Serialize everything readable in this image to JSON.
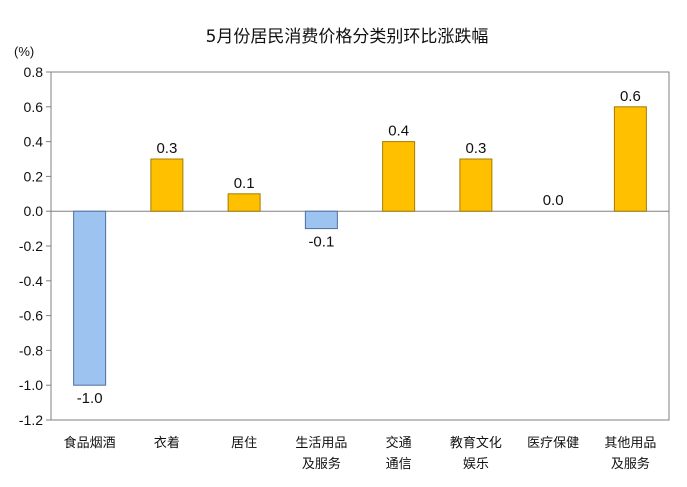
{
  "chart_data": {
    "type": "bar",
    "title": "5月份居民消费价格分类别环比涨跌幅",
    "unit_label": "(%)",
    "categories": [
      [
        "食品烟酒"
      ],
      [
        "衣着"
      ],
      [
        "居住"
      ],
      [
        "生活用品",
        "及服务"
      ],
      [
        "交通",
        "通信"
      ],
      [
        "教育文化",
        "娱乐"
      ],
      [
        "医疗保健"
      ],
      [
        "其他用品",
        "及服务"
      ]
    ],
    "values": [
      -1.0,
      0.3,
      0.1,
      -0.1,
      0.4,
      0.3,
      0.0,
      0.6
    ],
    "data_labels": [
      "-1.0",
      "0.3",
      "0.1",
      "-0.1",
      "0.4",
      "0.3",
      "0.0",
      "0.6"
    ],
    "ylim": [
      -1.2,
      0.8
    ],
    "yticks": [
      "0.8",
      "0.6",
      "0.4",
      "0.2",
      "0.0",
      "-0.2",
      "-0.4",
      "-0.6",
      "-0.8",
      "-1.0",
      "-1.2"
    ],
    "grid": false,
    "legend": "none",
    "colors": {
      "positive_fill": "#FFC000",
      "positive_stroke": "#A57C00",
      "negative_fill": "#9DC3F0",
      "negative_stroke": "#4F6FA0",
      "axis": "#808080"
    }
  }
}
